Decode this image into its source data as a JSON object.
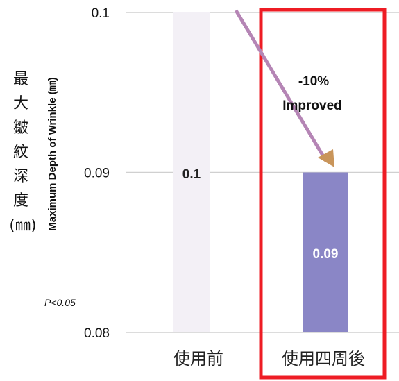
{
  "chart_data": {
    "type": "bar",
    "categories": [
      "使用前",
      "使用四周後"
    ],
    "values": [
      0.1,
      0.09
    ],
    "data_labels": [
      "0.1",
      "0.09"
    ],
    "ylim": [
      0.08,
      0.1
    ],
    "yticks": [
      "0.08",
      "0.09",
      "0.1"
    ],
    "ylabel_cjk": [
      "最",
      "大",
      "皺",
      "紋",
      "深",
      "度",
      "(㎜)"
    ],
    "ylabel_en": "Maximum Depth of Wrinkle (㎜)",
    "annotation": [
      "-10%",
      "Improved"
    ],
    "p_value": "P<0.05",
    "grid": true,
    "colors": {
      "before_bar": "#f3f0f6",
      "after_bar": "#8a86c6",
      "highlight_box": "#ee1c24",
      "arrow": "#b585b5",
      "arrow_head": "#c9955a",
      "grid": "#d0d0d0",
      "label_after": "#ffffff",
      "label_before": "#222222"
    }
  }
}
